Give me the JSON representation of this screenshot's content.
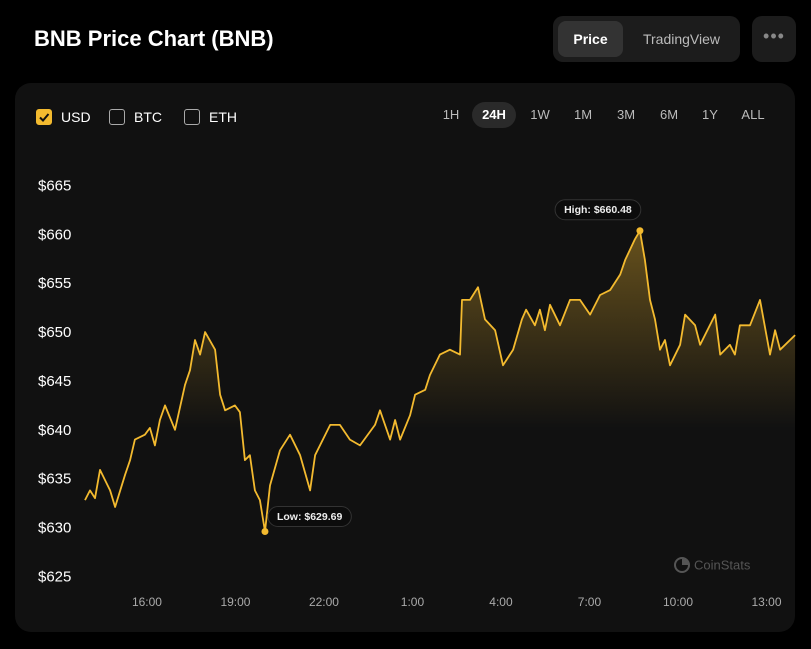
{
  "header": {
    "title": "BNB Price Chart (BNB)",
    "tabs": [
      "Price",
      "TradingView"
    ],
    "active_tab": 0
  },
  "currencies": [
    {
      "label": "USD",
      "checked": true
    },
    {
      "label": "BTC",
      "checked": false
    },
    {
      "label": "ETH",
      "checked": false
    }
  ],
  "ranges": [
    "1H",
    "24H",
    "1W",
    "1M",
    "3M",
    "6M",
    "1Y",
    "ALL"
  ],
  "active_range": 1,
  "watermark": "CoinStats",
  "chart_data": {
    "type": "line",
    "x": [
      13.9,
      14.07,
      14.24,
      14.41,
      14.75,
      14.92,
      15.26,
      15.43,
      15.59,
      15.93,
      16.1,
      16.27,
      16.44,
      16.61,
      16.95,
      17.29,
      17.46,
      17.63,
      17.8,
      17.97,
      18.31,
      18.48,
      18.65,
      18.98,
      19.15,
      19.32,
      19.49,
      19.66,
      19.83,
      20.0,
      20.17,
      20.51,
      20.85,
      21.19,
      21.53,
      21.7,
      22.21,
      22.54,
      22.88,
      23.22,
      23.73,
      23.9,
      24.24,
      24.41,
      24.58,
      24.92,
      25.09,
      25.43,
      25.59,
      25.93,
      26.27,
      26.61,
      26.68,
      26.95,
      27.22,
      27.46,
      27.8,
      28.07,
      28.41,
      28.71,
      28.85,
      29.15,
      29.32,
      29.49,
      29.66,
      30.0,
      30.34,
      30.68,
      31.02,
      31.36,
      31.7,
      32.04,
      32.21,
      32.54,
      32.71,
      32.88,
      33.05,
      33.22,
      33.39,
      33.56,
      33.73,
      34.07,
      34.24,
      34.58,
      34.75,
      35.26,
      35.43,
      35.76,
      35.93,
      36.1,
      36.44,
      36.78,
      37.12,
      37.29,
      37.46,
      37.97
    ],
    "series": [
      {
        "color": "#f3ba2f",
        "values": [
          632.9,
          633.9,
          633.1,
          636.0,
          633.9,
          632.2,
          635.5,
          637.0,
          639.1,
          639.6,
          640.3,
          638.5,
          641.1,
          642.6,
          640.1,
          644.7,
          646.2,
          649.3,
          647.8,
          650.1,
          648.3,
          643.7,
          642.1,
          642.6,
          641.9,
          637.0,
          637.5,
          633.9,
          632.9,
          629.69,
          634.4,
          638.0,
          639.6,
          637.5,
          633.9,
          637.5,
          640.6,
          640.6,
          639.1,
          638.5,
          640.6,
          642.1,
          639.1,
          641.1,
          639.1,
          641.6,
          643.7,
          644.2,
          645.7,
          647.8,
          648.3,
          647.8,
          653.4,
          653.4,
          654.7,
          651.4,
          650.3,
          646.7,
          648.3,
          651.4,
          652.4,
          650.8,
          652.4,
          650.3,
          652.9,
          650.8,
          653.4,
          653.4,
          651.9,
          653.9,
          654.4,
          656.0,
          657.5,
          659.6,
          660.48,
          657.5,
          653.4,
          651.4,
          648.3,
          649.3,
          646.7,
          648.8,
          651.9,
          650.8,
          648.8,
          651.9,
          647.8,
          648.8,
          647.8,
          650.8,
          650.8,
          653.4,
          647.8,
          650.3,
          648.3,
          649.8
        ]
      }
    ],
    "xlim": [
      13.9,
      38
    ],
    "xticks": [
      {
        "value": 16,
        "label": "16:00"
      },
      {
        "value": 19,
        "label": "19:00"
      },
      {
        "value": 22,
        "label": "22:00"
      },
      {
        "value": 25,
        "label": "1:00"
      },
      {
        "value": 28,
        "label": "4:00"
      },
      {
        "value": 31,
        "label": "7:00"
      },
      {
        "value": 34,
        "label": "10:00"
      },
      {
        "value": 37,
        "label": "13:00"
      }
    ],
    "ylim": [
      623.7,
      666.7
    ],
    "yticks": [
      {
        "value": 625,
        "label": "$625"
      },
      {
        "value": 630,
        "label": "$630"
      },
      {
        "value": 635,
        "label": "$635"
      },
      {
        "value": 640,
        "label": "$640"
      },
      {
        "value": 645,
        "label": "$645"
      },
      {
        "value": 650,
        "label": "$650"
      },
      {
        "value": 655,
        "label": "$655"
      },
      {
        "value": 660,
        "label": "$660"
      },
      {
        "value": 665,
        "label": "$665"
      }
    ],
    "grid": false,
    "area_fill": true,
    "annotations": [
      {
        "label": "High: $660.48",
        "x": 32.71,
        "y": 660.48,
        "placement": "above"
      },
      {
        "label": "Low: $629.69",
        "x": 20.0,
        "y": 629.69,
        "placement": "right"
      }
    ]
  }
}
